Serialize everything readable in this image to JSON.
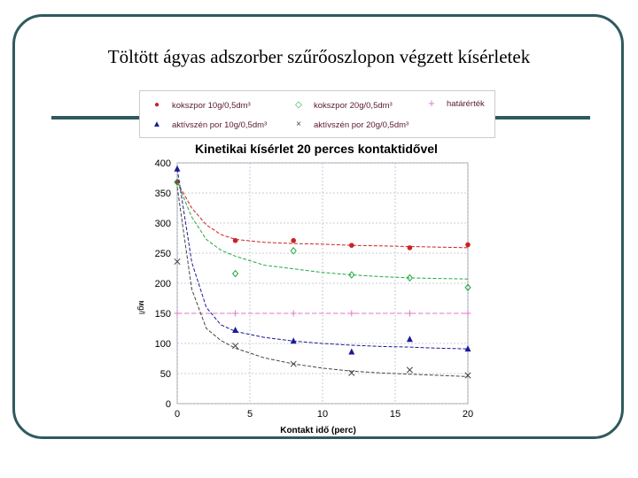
{
  "slide": {
    "title": "Töltött ágyas adszorber szűrőoszlopon végzett kísérletek"
  },
  "colors": {
    "frame": "#2f5a5e",
    "red": "#cc2222",
    "green": "#22aa44",
    "blue": "#1a1a99",
    "gray": "#444444",
    "pink": "#dd77cc"
  },
  "chart_data": {
    "type": "scatter",
    "title": "Kinetikai kísérlet 20 perces kontaktidővel",
    "xlabel": "Kontakt idő (perc)",
    "ylabel": "мg/l",
    "xlim": [
      0,
      20
    ],
    "ylim": [
      0,
      400
    ],
    "xticks": [
      0,
      5,
      10,
      15,
      20
    ],
    "yticks": [
      0,
      50,
      100,
      150,
      200,
      250,
      300,
      350,
      400
    ],
    "grid": true,
    "legend_position": "top",
    "series": [
      {
        "name": "kokszpor 10g/0,5dm³",
        "marker": "circle",
        "color": "#cc2222",
        "x": [
          0,
          4,
          8,
          12,
          16,
          20
        ],
        "y": [
          368,
          271,
          271,
          263,
          259,
          264
        ],
        "fit_x": [
          0,
          1,
          2,
          3,
          4,
          6,
          8,
          10,
          12,
          14,
          16,
          18,
          20
        ],
        "fit_y": [
          368,
          325,
          297,
          281,
          273,
          268,
          266,
          265,
          263,
          262,
          261,
          260,
          259
        ]
      },
      {
        "name": "kokszpor 20g/0,5dm³",
        "marker": "diamond",
        "color": "#22aa44",
        "x": [
          0,
          4,
          8,
          12,
          16,
          20
        ],
        "y": [
          368,
          216,
          254,
          214,
          209,
          193
        ],
        "fit_x": [
          0,
          1,
          2,
          3,
          4,
          6,
          8,
          10,
          12,
          14,
          16,
          18,
          20
        ],
        "fit_y": [
          368,
          310,
          273,
          255,
          245,
          230,
          224,
          218,
          214,
          211,
          209,
          208,
          207
        ]
      },
      {
        "name": "határérték",
        "marker": "plus",
        "color": "#dd77cc",
        "x": [
          0,
          4,
          8,
          12,
          16,
          20
        ],
        "y": [
          150,
          150,
          150,
          150,
          150,
          150
        ]
      },
      {
        "name": "aktívszén por 10g/0,5dm³",
        "marker": "triangle",
        "color": "#1a1a99",
        "x": [
          0,
          4,
          8,
          12,
          16,
          20
        ],
        "y": [
          390,
          122,
          104,
          86,
          107,
          91
        ],
        "fit_x": [
          0,
          1,
          2,
          3,
          4,
          6,
          8,
          10,
          12,
          14,
          16,
          18,
          20
        ],
        "fit_y": [
          390,
          235,
          160,
          131,
          120,
          110,
          104,
          100,
          97,
          95,
          94,
          92,
          91
        ]
      },
      {
        "name": "aktívszén por 20g/0,5dm³",
        "marker": "x",
        "color": "#444444",
        "x": [
          0,
          4,
          8,
          12,
          16,
          20
        ],
        "y": [
          236,
          96,
          66,
          51,
          56,
          47
        ],
        "fit_x": [
          0,
          1,
          2,
          3,
          4,
          6,
          8,
          10,
          12,
          14,
          16,
          18,
          20
        ],
        "fit_y": [
          360,
          190,
          125,
          105,
          92,
          76,
          66,
          59,
          54,
          51,
          49,
          47,
          45
        ]
      }
    ]
  }
}
